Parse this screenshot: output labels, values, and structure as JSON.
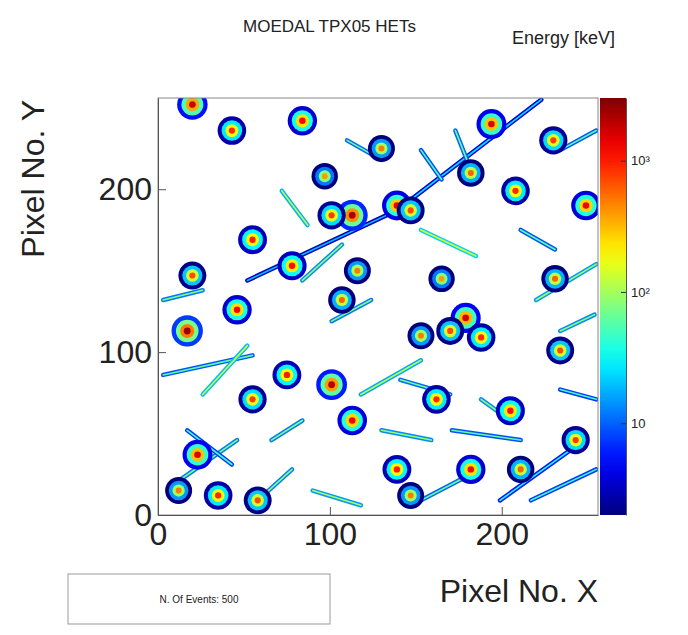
{
  "chart_data": {
    "type": "heatmap",
    "title": "MOEDAL TPX05 HETs",
    "colorbar_label": "Energy [keV]",
    "xlabel": "Pixel No. X",
    "ylabel": "Pixel No. Y",
    "annotation": "N. Of Events: 500",
    "xlim": [
      0,
      256
    ],
    "ylim": [
      0,
      256
    ],
    "xticks": [
      0,
      100,
      200
    ],
    "yticks": [
      0,
      100,
      200
    ],
    "clim": [
      2,
      3000
    ],
    "cticks": [
      10,
      {
        "value": 100,
        "label": "10²"
      },
      {
        "value": 1000,
        "label": "10³"
      }
    ],
    "blobs": {
      "x": [
        20,
        43,
        84,
        97,
        194,
        182,
        113,
        101,
        139,
        147,
        55,
        78,
        116,
        165,
        208,
        249,
        231,
        20,
        46,
        17,
        179,
        188,
        153,
        170,
        75,
        101,
        113,
        55,
        23,
        35,
        58,
        12,
        205,
        243,
        182,
        211,
        139,
        147,
        234,
        162,
        107,
        130,
        230
      ],
      "y": [
        252,
        236,
        242,
        208,
        240,
        210,
        184,
        184,
        190,
        187,
        169,
        153,
        150,
        145,
        199,
        190,
        145,
        147,
        126,
        113,
        121,
        109,
        110,
        113,
        86,
        80,
        58,
        71,
        37,
        12,
        9,
        15,
        64,
        46,
        28,
        28,
        28,
        12,
        101,
        71,
        132,
        225,
        230
      ],
      "energy": [
        1800,
        900,
        1200,
        400,
        1500,
        600,
        2200,
        800,
        1400,
        700,
        1000,
        1100,
        500,
        400,
        900,
        1300,
        600,
        700,
        1200,
        2500,
        1600,
        900,
        500,
        700,
        1000,
        2000,
        1300,
        800,
        1500,
        900,
        700,
        500,
        1100,
        800,
        1200,
        600,
        1000,
        500,
        700,
        900,
        600,
        500,
        800
      ]
    },
    "tracks": {
      "x0": [
        52,
        139,
        3,
        12,
        17,
        87,
        84,
        153,
        182,
        211,
        220,
        101,
        118,
        141,
        130,
        171,
        199,
        217,
        58,
        90,
        153,
        234,
        234,
        26,
        66,
        110,
        153,
        188,
        3,
        234
      ],
      "y0": [
        144,
        187,
        86,
        21,
        52,
        178,
        144,
        175,
        212,
        175,
        132,
        119,
        74,
        83,
        52,
        52,
        9,
        9,
        9,
        15,
        9,
        224,
        113,
        74,
        46,
        230,
        224,
        71,
        132,
        77
      ],
      "x1": [
        139,
        223,
        55,
        46,
        43,
        72,
        107,
        185,
        173,
        231,
        255,
        124,
        153,
        170,
        159,
        211,
        248,
        255,
        78,
        118,
        182,
        255,
        254,
        52,
        84,
        130,
        165,
        205,
        26,
        255
      ],
      "y1": [
        187,
        255,
        98,
        46,
        31,
        199,
        166,
        159,
        236,
        163,
        154,
        132,
        95,
        74,
        46,
        46,
        46,
        28,
        28,
        6,
        25,
        236,
        123,
        104,
        58,
        218,
        206,
        58,
        138,
        71
      ],
      "energy": [
        20,
        25,
        60,
        80,
        50,
        120,
        90,
        150,
        70,
        60,
        100,
        80,
        110,
        70,
        90,
        60,
        40,
        50,
        80,
        100,
        70,
        60,
        90,
        130,
        80,
        70,
        60,
        90,
        80,
        50
      ]
    }
  }
}
